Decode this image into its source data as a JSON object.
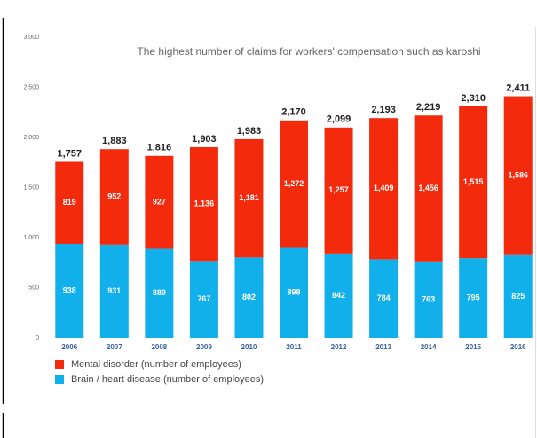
{
  "chart_data": {
    "type": "stacked_bar",
    "title": "The highest number of claims for workers' compensation  such as karoshi",
    "categories": [
      "2006",
      "2007",
      "2008",
      "2009",
      "2010",
      "2011",
      "2012",
      "2013",
      "2014",
      "2015",
      "2016"
    ],
    "series": [
      {
        "name": "Mental disorder (number of employees)",
        "color": "#f42a0c",
        "values": [
          819,
          952,
          927,
          1136,
          1181,
          1272,
          1257,
          1409,
          1456,
          1515,
          1586
        ],
        "value_labels": [
          "819",
          "952",
          "927",
          "1,136",
          "1,181",
          "1,272",
          "1,257",
          "1,409",
          "1,456",
          "1,515",
          "1,586"
        ]
      },
      {
        "name": "Brain / heart disease (number of employees)",
        "color": "#12b0ea",
        "values": [
          938,
          931,
          889,
          767,
          802,
          898,
          842,
          784,
          763,
          795,
          825
        ]
      }
    ],
    "totals": [
      1757,
      1883,
      1816,
      1903,
      1983,
      2170,
      2099,
      2193,
      2219,
      2310,
      2411
    ],
    "total_labels": [
      "1,757",
      "1,883",
      "1,816",
      "1,903",
      "1,983",
      "2,170",
      "2,099",
      "2,193",
      "2,219",
      "2,310",
      "2,411"
    ],
    "ylim": [
      0,
      3000
    ],
    "yticks": [
      0,
      500,
      {
        "value": 1000,
        "label": "1,000"
      },
      {
        "value": 1500,
        "label": "1,500"
      },
      {
        "value": 2000,
        "label": "2,000"
      },
      {
        "value": 2500,
        "label": "2,500"
      },
      {
        "value": 3000,
        "label": "3,000"
      }
    ],
    "grid": false
  }
}
